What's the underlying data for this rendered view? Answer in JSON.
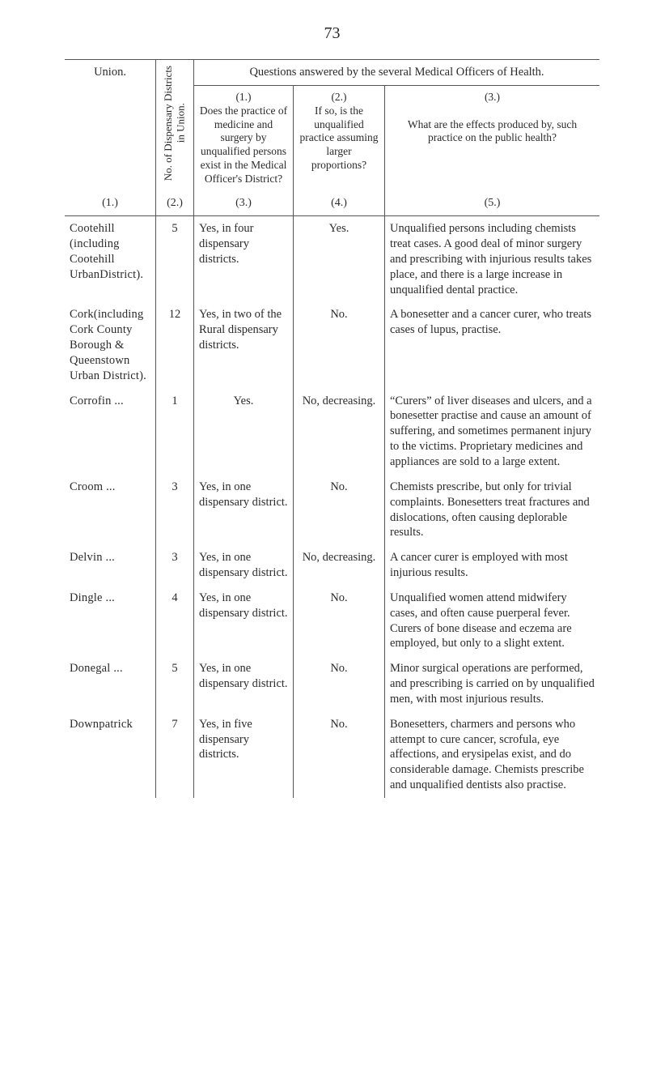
{
  "page_number": "73",
  "header": {
    "questions_heading": "Questions answered by the several Medical Officers of Health.",
    "col1_label": "Union.",
    "col2_label_line1": "No. of Dispensary Districts",
    "col2_label_line2": "in Union.",
    "col3_num": "(1.)",
    "col3_text": "Does the practice of medicine and surgery by unqualified persons exist in the Medical Officer's District?",
    "col4_num": "(2.)",
    "col4_text": "If so, is the unqualified practice assuming larger proportions?",
    "col5_num": "(3.)",
    "col5_text": "What are the effects produced by, such practice on the public health?",
    "nums": [
      "(1.)",
      "(2.)",
      "(3.)",
      "(4.)",
      "(5.)"
    ]
  },
  "rows": [
    {
      "union": "Cootehill (including Cootehill UrbanDistrict).",
      "n": "5",
      "q1": "Yes, in four dispensary districts.",
      "q2": "Yes.",
      "q3": "Unqualified persons including chemists treat cases. A good deal of minor surgery and prescribing with injurious results takes place, and there is a large increase in unqualified dental practice."
    },
    {
      "union": "Cork(including Cork County Borough & Queenstown Urban District).",
      "n": "12",
      "q1": "Yes, in two of the Rural dispensary districts.",
      "q2": "No.",
      "q3": "A bonesetter and a cancer curer, who treats cases of lupus, practise."
    },
    {
      "union": "Corrofin   ...",
      "n": "1",
      "q1": "Yes.",
      "q2": "No, decreasing.",
      "q3": "“Curers” of liver diseases and ulcers, and a bonesetter practise and cause an amount of suffering, and sometimes permanent injury to the victims. Proprietary medicines and appliances are sold to a large extent."
    },
    {
      "union": "Croom      ...",
      "n": "3",
      "q1": "Yes, in one dispensary district.",
      "q2": "No.",
      "q3": "Chemists prescribe, but only for trivial complaints. Bonesetters treat fractures and dislocations, often causing deplorable results."
    },
    {
      "union": "Delvin     ...",
      "n": "3",
      "q1": "Yes, in one dispensary district.",
      "q2": "No, decreasing.",
      "q3": "A cancer curer is employed with most injurious results."
    },
    {
      "union": "Dingle     ...",
      "n": "4",
      "q1": "Yes, in one dispensary district.",
      "q2": "No.",
      "q3": "Unqualified women attend midwifery cases, and often cause puerperal fever. Curers of bone disease and eczema are employed, but only to a slight extent."
    },
    {
      "union": "Donegal   ...",
      "n": "5",
      "q1": "Yes, in one dispensary district.",
      "q2": "No.",
      "q3": "Minor surgical operations are performed, and prescribing is carried on by unqualified men, with most injurious results."
    },
    {
      "union": "Downpatrick",
      "n": "7",
      "q1": "Yes, in five dispensary districts.",
      "q2": "No.",
      "q3": "Bonesetters, charmers and persons who attempt to cure cancer, scrofula, eye affections, and erysipelas exist, and do considerable damage. Chemists prescribe and unqualified dentists also practise."
    }
  ]
}
